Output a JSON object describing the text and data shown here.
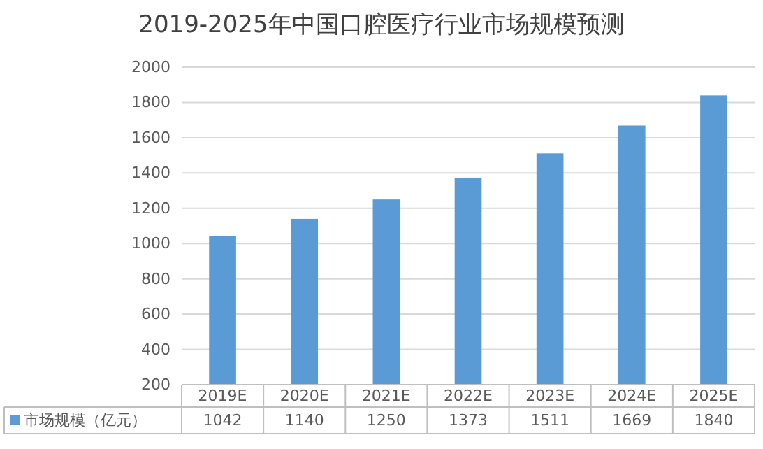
{
  "chart_data": {
    "type": "bar",
    "title": "2019-2025年中国口腔医疗行业市场规模预测",
    "categories": [
      "2019E",
      "2020E",
      "2021E",
      "2022E",
      "2023E",
      "2024E",
      "2025E"
    ],
    "series": [
      {
        "name": "市场规模（亿元）",
        "color": "#5b9bd5",
        "values": [
          1042,
          1140,
          1250,
          1373,
          1511,
          1669,
          1840
        ]
      }
    ],
    "ylim": [
      200,
      2000
    ],
    "yticks": [
      200,
      400,
      600,
      800,
      1000,
      1200,
      1400,
      1600,
      1800,
      2000
    ],
    "grid": "y",
    "data_labels": true
  }
}
